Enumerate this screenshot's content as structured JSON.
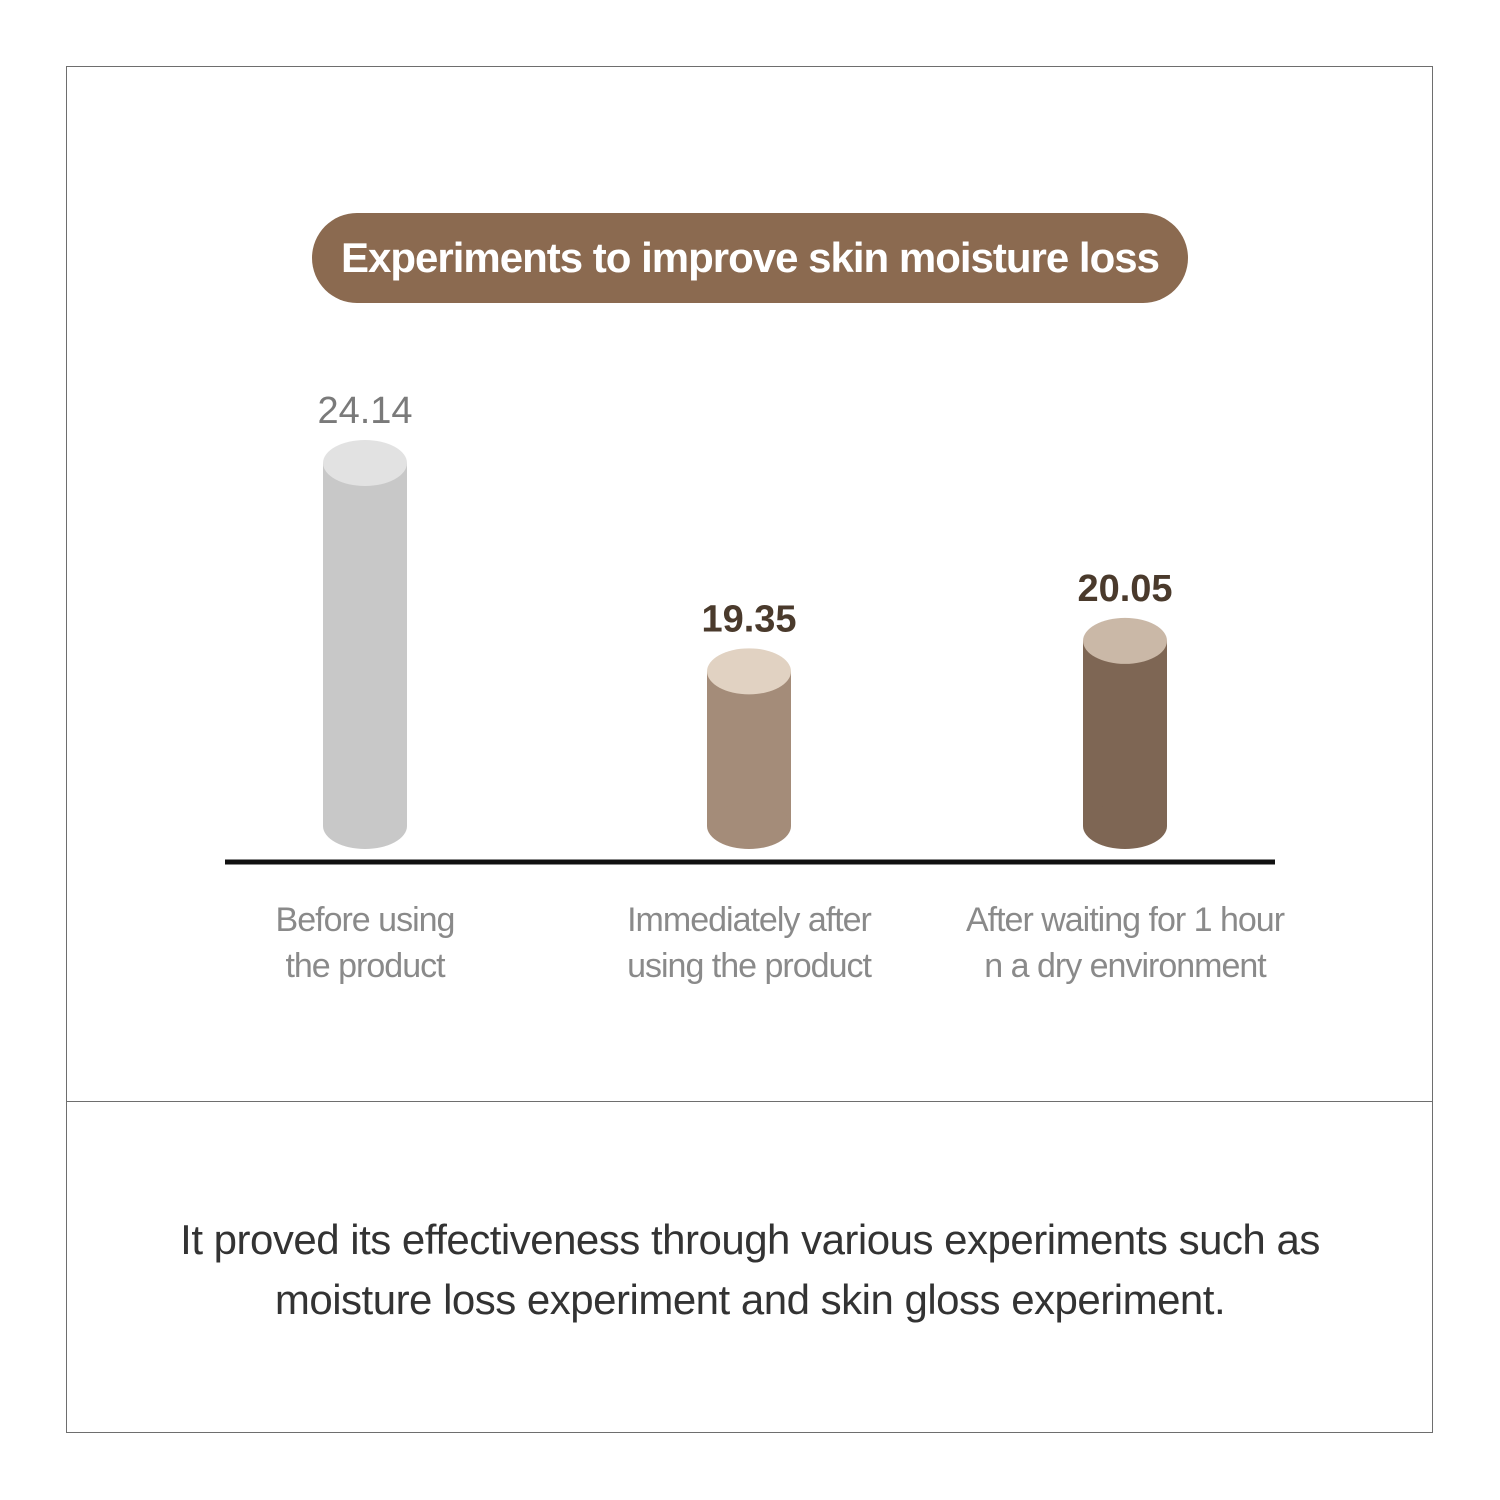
{
  "chart_data": {
    "type": "bar",
    "title": "Experiments to improve skin moisture loss",
    "categories": [
      [
        "Before using",
        "the product"
      ],
      [
        "Immediately after",
        "using the product"
      ],
      [
        "After waiting for 1 hour",
        "n a dry environment"
      ]
    ],
    "values": [
      24.14,
      19.35,
      20.05
    ],
    "value_labels": [
      "24.14",
      "19.35",
      "20.05"
    ],
    "xlabel": "",
    "ylabel": "",
    "grid": false,
    "colors": {
      "title_bg": "#8b6a50",
      "baseline": "#111111",
      "bar_bodies": [
        "#c8c8c8",
        "#a48c79",
        "#7e6654"
      ],
      "bar_tops": [
        "#e2e2e2",
        "#e1d2c2",
        "#cab8a7"
      ],
      "value_text": [
        "#7a7a7a",
        "#4a3a2c",
        "#4a3a2c"
      ]
    }
  },
  "caption": {
    "line1": "It proved its effectiveness through various experiments such as",
    "line2": "moisture loss experiment and skin gloss experiment."
  }
}
